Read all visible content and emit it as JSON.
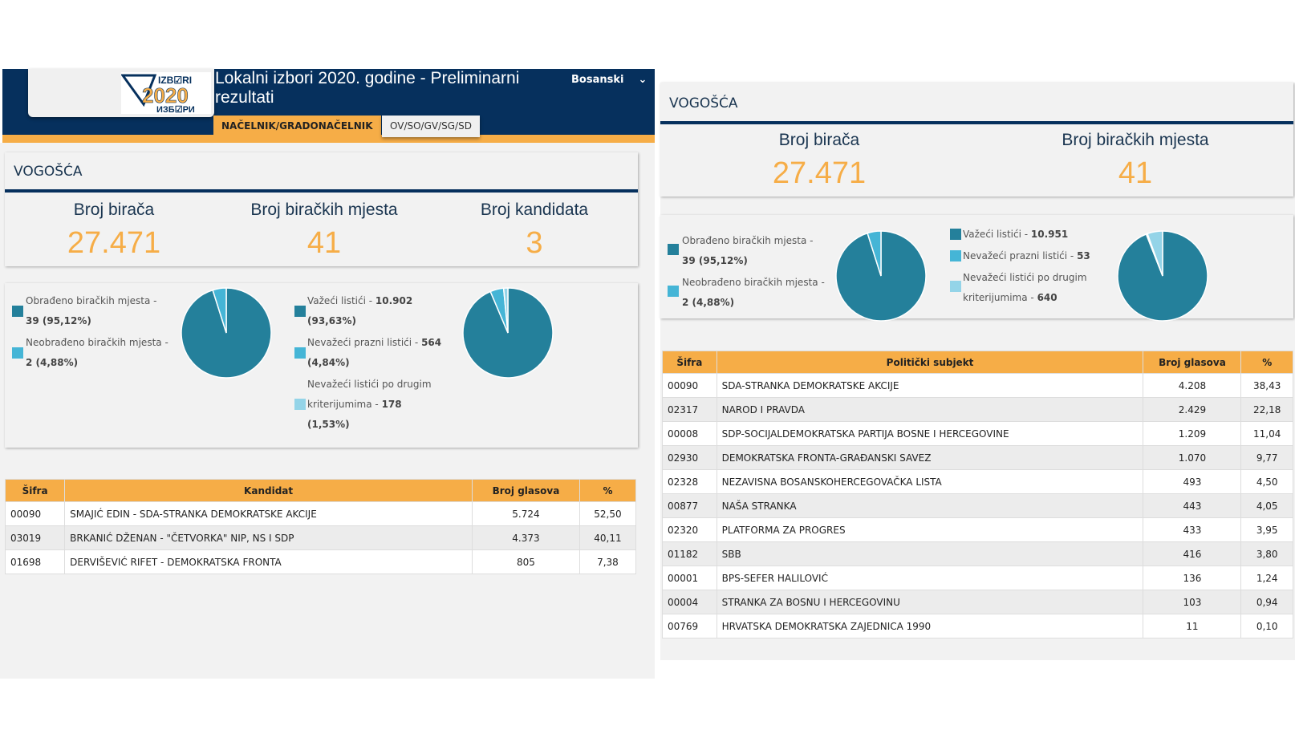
{
  "header": {
    "title": "Lokalni izbori 2020. godine - Preliminarni rezultati",
    "language": "Bosanski",
    "logo_text": [
      "IZBORI",
      "2020",
      "ИЗБОРИ"
    ],
    "tabs": [
      {
        "label": "NAČELNIK/GRADONAČELNIK",
        "active": true
      },
      {
        "label": "OV/SO/GV/SG/SD",
        "active": false
      }
    ]
  },
  "colors": {
    "navy": "#06305d",
    "orange": "#f6ad47",
    "slice1": "#24809b",
    "slice2": "#45b5d6",
    "slice3": "#94d4e8"
  },
  "left": {
    "place": "VOGOŠĆA",
    "stats": [
      {
        "label": "Broj birača",
        "value": "27.471"
      },
      {
        "label": "Broj biračkih mjesta",
        "value": "41"
      },
      {
        "label": "Broj kandidata",
        "value": "3"
      }
    ],
    "legend1": [
      {
        "text": "Obrađeno biračkih mjesta -",
        "value": "39 (95,12%)"
      },
      {
        "text": "Neobrađeno biračkih mjesta -",
        "value": "2 (4,88%)"
      }
    ],
    "legend2": [
      {
        "text": "Važeći listići -",
        "value": "10.902",
        "pct": "(93,63%)"
      },
      {
        "text": "Nevažeći prazni listići -",
        "value": "564",
        "pct": "(4,84%)"
      },
      {
        "text": "Nevažeći listići po drugim kriterijumima -",
        "value": "178",
        "pct": "(1,53%)"
      }
    ],
    "chart_data": [
      {
        "type": "pie",
        "values": [
          39,
          2
        ]
      },
      {
        "type": "pie",
        "values": [
          10902,
          564,
          178
        ]
      }
    ],
    "table": {
      "headers": [
        "Šifra",
        "Kandidat",
        "Broj glasova",
        "%"
      ],
      "rows": [
        [
          "00090",
          "SMAJIĆ EDIN - SDA-STRANKA DEMOKRATSKE AKCIJE",
          "5.724",
          "52,50"
        ],
        [
          "03019",
          "BRKANIĆ DŽENAN - \"ČETVORKA\" NIP, NS I SDP",
          "4.373",
          "40,11"
        ],
        [
          "01698",
          "DERVIŠEVIĆ RIFET - DEMOKRATSKA FRONTA",
          "805",
          "7,38"
        ]
      ]
    }
  },
  "right": {
    "place": "VOGOŠĆA",
    "stats": [
      {
        "label": "Broj birača",
        "value": "27.471"
      },
      {
        "label": "Broj biračkih mjesta",
        "value": "41"
      }
    ],
    "legend1": [
      {
        "text": "Obrađeno biračkih mjesta -",
        "value": "39 (95,12%)"
      },
      {
        "text": "Neobrađeno biračkih mjesta -",
        "value": "2 (4,88%)"
      }
    ],
    "legend2": [
      {
        "text": "Važeći listići -",
        "value": "10.951"
      },
      {
        "text": "Nevažeći prazni listići -",
        "value": "53"
      },
      {
        "text": "Nevažeći listići po drugim kriterijumima -",
        "value": "640"
      }
    ],
    "chart_data": [
      {
        "type": "pie",
        "values": [
          39,
          2
        ]
      },
      {
        "type": "pie",
        "values": [
          10951,
          53,
          640
        ]
      }
    ],
    "table": {
      "headers": [
        "Šifra",
        "Politički subjekt",
        "Broj glasova",
        "%"
      ],
      "rows": [
        [
          "00090",
          "SDA-STRANKA DEMOKRATSKE AKCIJE",
          "4.208",
          "38,43"
        ],
        [
          "02317",
          "NAROD I PRAVDA",
          "2.429",
          "22,18"
        ],
        [
          "00008",
          "SDP-SOCIJALDEMOKRATSKA PARTIJA BOSNE I HERCEGOVINE",
          "1.209",
          "11,04"
        ],
        [
          "02930",
          "DEMOKRATSKA FRONTA-GRAĐANSKI SAVEZ",
          "1.070",
          "9,77"
        ],
        [
          "02328",
          "NEZAVISNA BOSANSKOHERCEGOVAČKA LISTA",
          "493",
          "4,50"
        ],
        [
          "00877",
          "NAŠA STRANKA",
          "443",
          "4,05"
        ],
        [
          "02320",
          "PLATFORMA ZA PROGRES",
          "433",
          "3,95"
        ],
        [
          "01182",
          "SBB",
          "416",
          "3,80"
        ],
        [
          "00001",
          "BPS-SEFER HALILOVIĆ",
          "136",
          "1,24"
        ],
        [
          "00004",
          "STRANKA ZA BOSNU I HERCEGOVINU",
          "103",
          "0,94"
        ],
        [
          "00769",
          "HRVATSKA DEMOKRATSKA ZAJEDNICA 1990",
          "11",
          "0,10"
        ]
      ]
    }
  }
}
